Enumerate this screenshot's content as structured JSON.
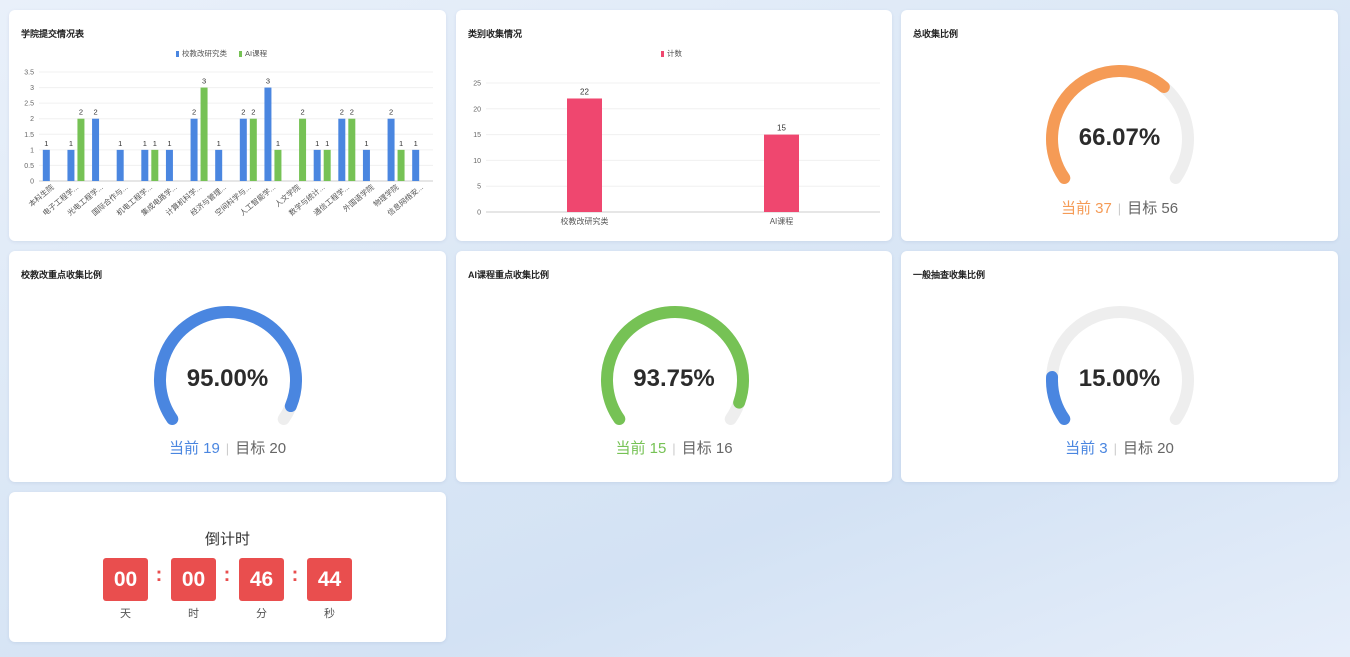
{
  "colors": {
    "blue": "#4a86e0",
    "green": "#76c255",
    "pink": "#ef476f",
    "orange": "#f59b56",
    "red": "#e94e4e",
    "track": "#eeeeee"
  },
  "college_chart": {
    "title": "学院提交情况表",
    "chart_data": {
      "type": "bar",
      "legend_position": "top-center",
      "categories": [
        "本科生院",
        "电子工程学...",
        "光电工程学...",
        "国际合作与...",
        "机电工程学...",
        "集成电路学...",
        "计算机科学...",
        "经济与管理...",
        "空间科学与...",
        "人工智能学...",
        "人文学院",
        "数学与统计...",
        "通信工程学...",
        "外国语学院",
        "物理学院",
        "信息网络安..."
      ],
      "series": [
        {
          "name": "校教改研究类",
          "values": [
            1,
            1,
            2,
            1,
            1,
            1,
            2,
            1,
            2,
            3,
            0,
            1,
            2,
            1,
            2,
            1
          ],
          "color": "#4a86e0"
        },
        {
          "name": "AI课程",
          "values": [
            0,
            2,
            0,
            0,
            1,
            0,
            3,
            0,
            2,
            1,
            2,
            1,
            2,
            0,
            1,
            0
          ],
          "color": "#76c255"
        }
      ],
      "ylim": [
        0,
        3.5
      ],
      "yticks": [
        "0",
        "0.5",
        "1",
        "1.5",
        "2",
        "2.5",
        "3",
        "3.5"
      ],
      "grid": true
    }
  },
  "category_chart": {
    "title": "类别收集情况",
    "chart_data": {
      "type": "bar",
      "legend_position": "top-center",
      "categories": [
        "校教改研究类",
        "AI课程"
      ],
      "series": [
        {
          "name": "计数",
          "values": [
            22,
            15
          ],
          "color": "#ef476f"
        }
      ],
      "ylim": [
        0,
        25
      ],
      "yticks": [
        "0",
        "5",
        "10",
        "15",
        "20",
        "25"
      ],
      "grid": true
    }
  },
  "gauges": [
    {
      "title": "总收集比例",
      "percent_value": 66.07,
      "percent_text": "66.07%",
      "current_label": "当前 37",
      "target_label": "目标 56",
      "color": "#f59b56"
    },
    {
      "title": "校教改重点收集比例",
      "percent_value": 95.0,
      "percent_text": "95.00%",
      "current_label": "当前 19",
      "target_label": "目标 20",
      "color": "#4a86e0"
    },
    {
      "title": "AI课程重点收集比例",
      "percent_value": 93.75,
      "percent_text": "93.75%",
      "current_label": "当前 15",
      "target_label": "目标 16",
      "color": "#76c255"
    },
    {
      "title": "一般抽查收集比例",
      "percent_value": 15.0,
      "percent_text": "15.00%",
      "current_label": "当前 3",
      "target_label": "目标 20",
      "color": "#4a86e0"
    }
  ],
  "countdown": {
    "title": "倒计时",
    "days": "00",
    "hours": "00",
    "minutes": "46",
    "seconds": "44",
    "colon": ":",
    "day_label": "天",
    "hour_label": "时",
    "minute_label": "分",
    "second_label": "秒"
  }
}
